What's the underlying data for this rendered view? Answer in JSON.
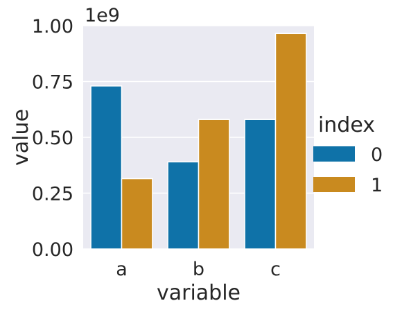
{
  "chart_data": {
    "type": "bar",
    "categories": [
      "a",
      "b",
      "c"
    ],
    "series": [
      {
        "name": "0",
        "values": [
          730000000,
          390000000,
          580000000
        ]
      },
      {
        "name": "1",
        "values": [
          315000000,
          580000000,
          965000000
        ]
      }
    ],
    "xlabel": "variable",
    "ylabel": "value",
    "ylim": [
      0,
      1000000000
    ],
    "yticks": [
      0,
      250000000,
      500000000,
      750000000,
      1000000000
    ],
    "ytick_labels": [
      "0.00",
      "0.25",
      "0.50",
      "0.75",
      "1.00"
    ],
    "y_offset_label": "1e9",
    "grid": true,
    "legend": {
      "title": "index",
      "placement": "right",
      "labels": [
        "0",
        "1"
      ]
    },
    "colors": {
      "series_0": "#0f72a8",
      "series_1": "#c98a1f",
      "plot_background": "#eaeaf2",
      "grid": "#ffffff"
    }
  }
}
